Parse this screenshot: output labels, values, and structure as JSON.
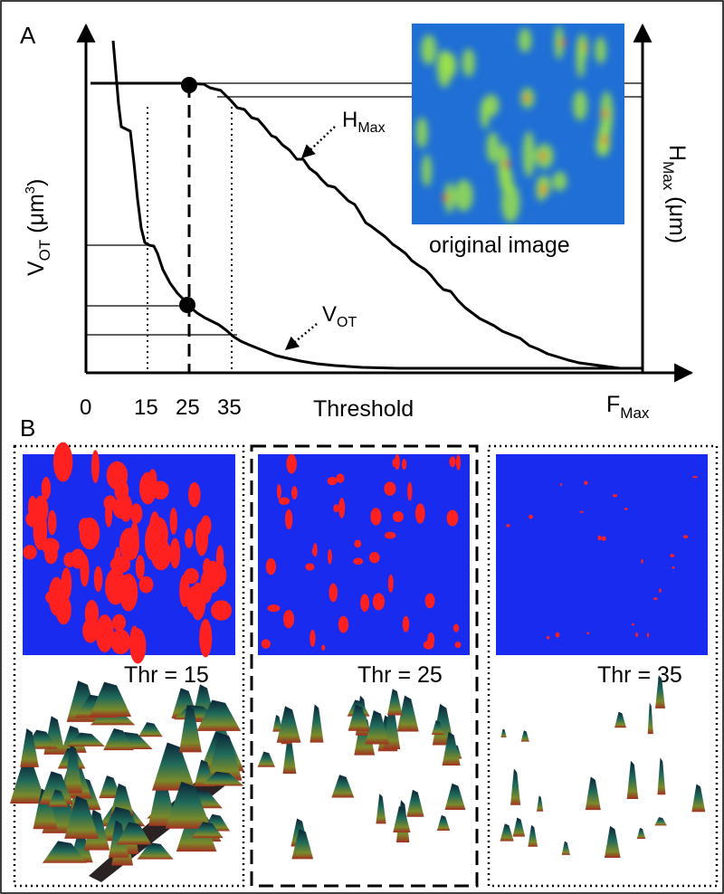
{
  "panel_a": {
    "label": "A",
    "left_axis_label": "V",
    "left_axis_sub": "OT",
    "left_axis_unit": " (μm",
    "left_axis_unit_sup": "3",
    "left_axis_close": ")",
    "right_axis_label": "H",
    "right_axis_sub": "Max",
    "right_axis_unit": " (μm)",
    "x_axis_label": "Threshold",
    "x_ticks": [
      "0",
      "15",
      "25",
      "35"
    ],
    "x_end_main": "F",
    "x_end_sub": "Max",
    "curve_label_h_main": "H",
    "curve_label_h_sub": "Max",
    "curve_label_v_main": "V",
    "curve_label_v_sub": "OT",
    "inset_caption": "original image"
  },
  "panel_b": {
    "label": "B",
    "panels": [
      {
        "threshold_label": "Thr = 15"
      },
      {
        "threshold_label": "Thr = 25"
      },
      {
        "threshold_label": "Thr = 35"
      }
    ]
  },
  "colors": {
    "image_background": "#1a2bf0",
    "segmented": "#ff2020",
    "inset_background": "#1f6fd6",
    "inset_spot": "#9be04a",
    "inset_peak": "#ff3a1a"
  }
}
